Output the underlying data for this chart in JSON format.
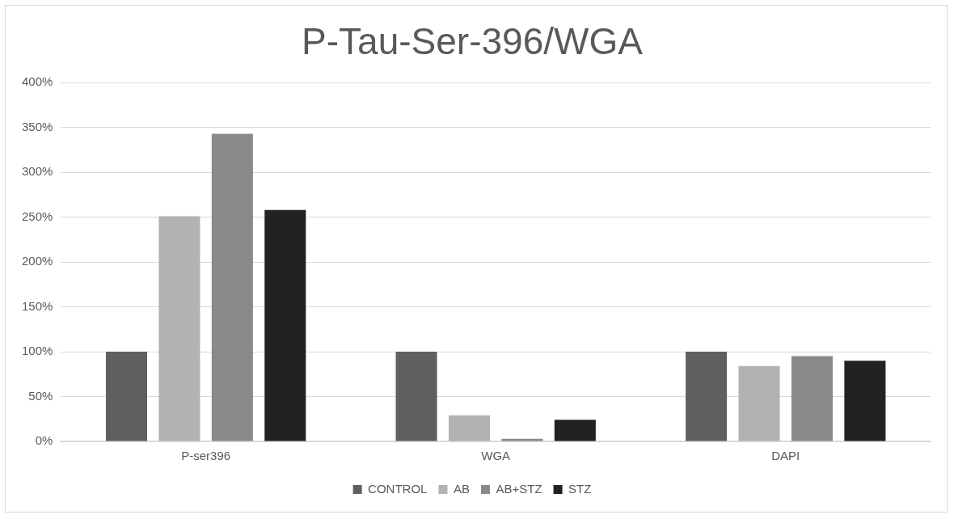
{
  "chart_data": {
    "type": "bar",
    "title": "P-Tau-Ser-396/WGA",
    "categories": [
      "P-ser396",
      "WGA",
      "DAPI"
    ],
    "series": [
      {
        "name": "CONTROL",
        "color": "#5f5f5f",
        "values": [
          100,
          100,
          100
        ]
      },
      {
        "name": "AB",
        "color": "#b2b2b2",
        "values": [
          251,
          29,
          84
        ]
      },
      {
        "name": "AB+STZ",
        "color": "#898989",
        "values": [
          343,
          3,
          95
        ]
      },
      {
        "name": "STZ",
        "color": "#222222",
        "values": [
          258,
          24,
          90
        ]
      }
    ],
    "ylim": [
      0,
      400
    ],
    "yticks": [
      {
        "value": 0,
        "label": "0%"
      },
      {
        "value": 50,
        "label": "50%"
      },
      {
        "value": 100,
        "label": "100%"
      },
      {
        "value": 150,
        "label": "150%"
      },
      {
        "value": 200,
        "label": "200%"
      },
      {
        "value": 250,
        "label": "250%"
      },
      {
        "value": 300,
        "label": "300%"
      },
      {
        "value": 350,
        "label": "350%"
      },
      {
        "value": 400,
        "label": "400%"
      }
    ],
    "grid": "y",
    "legend": "bottom"
  }
}
